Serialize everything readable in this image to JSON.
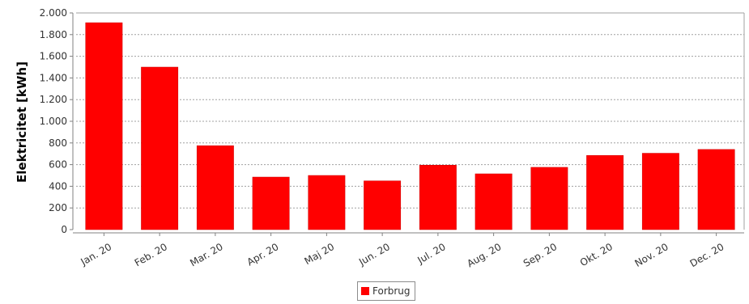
{
  "chart_data": {
    "type": "bar",
    "categories": [
      "Jan. 20",
      "Feb. 20",
      "Mar. 20",
      "Apr. 20",
      "Maj 20",
      "Jun. 20",
      "Jul. 20",
      "Aug. 20",
      "Sep. 20",
      "Okt. 20",
      "Nov. 20",
      "Dec. 20"
    ],
    "series": [
      {
        "name": "Forbrug",
        "values": [
          1910,
          1500,
          775,
          485,
          500,
          450,
          595,
          515,
          575,
          685,
          705,
          740
        ]
      }
    ],
    "title": "",
    "xlabel": "",
    "ylabel": "Elektricitet [kWh]",
    "ylim": [
      0,
      2000
    ],
    "yticks": [
      0,
      200,
      400,
      600,
      800,
      1000,
      1200,
      1400,
      1600,
      1800,
      2000
    ],
    "ytick_labels": [
      "0",
      "200",
      "400",
      "600",
      "800",
      "1.000",
      "1.200",
      "1.400",
      "1.600",
      "1.800",
      "2.000"
    ],
    "grid": true,
    "legend_position": "bottom-center",
    "colors": {
      "bar": "#ff0000",
      "bar_edge": "#cc0000",
      "grid": "#a0a0a0",
      "axis": "#808080"
    }
  }
}
